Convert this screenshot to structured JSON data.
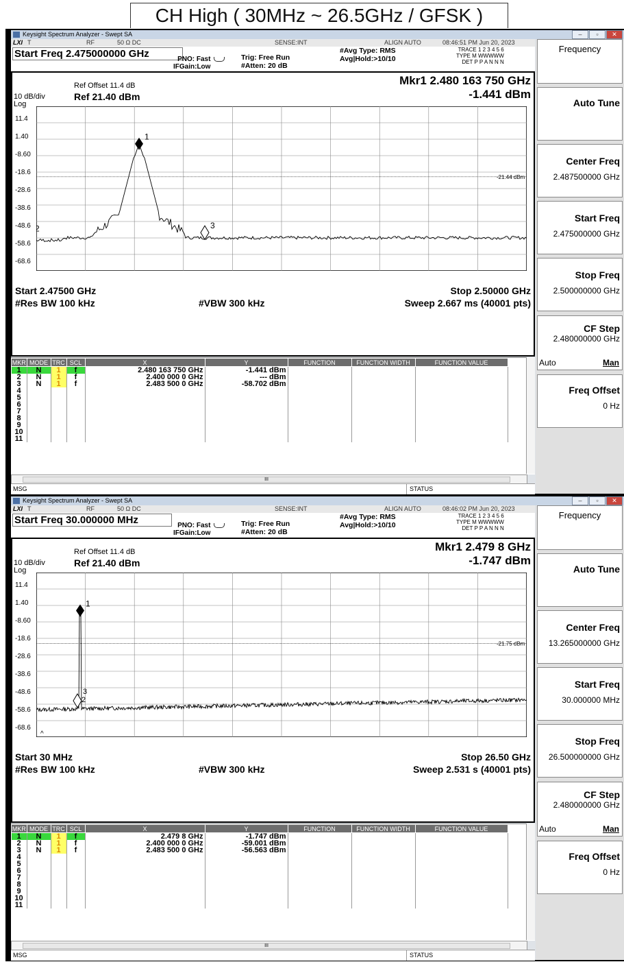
{
  "page_title": "CH High ( 30MHz ~ 26.5GHz / GFSK )",
  "analyzers": [
    {
      "window_title": "Keysight Spectrum Analyzer - Swept SA",
      "statusbar": {
        "lxi": "LXI",
        "t": "T",
        "rf": "RF",
        "ohm": "50 Ω  DC",
        "sense": "SENSE:INT",
        "align": "ALIGN AUTO",
        "time": "08:46:51 PM Jun 20, 2023"
      },
      "start_freq_label": "Start Freq 2.475000000 GHz",
      "pno": "PNO: Fast",
      "ifgain": "IFGain:Low",
      "trig": "Trig: Free Run",
      "atten": "#Atten: 20 dB",
      "avg_type": "#Avg Type: RMS",
      "avg_hold": "Avg|Hold:>10/10",
      "trace_row": "TRACE 1 2 3 4 5 6",
      "type_row": "TYPE M WWWWW",
      "det_row": "DET P P A N N N",
      "ref_offset": "Ref Offset 11.4 dB",
      "scale": "10 dB/div",
      "scale_type": "Log",
      "ref_level": "Ref 21.40 dBm",
      "marker_freq": "Mkr1 2.480 163 750 GHz",
      "marker_amp": "-1.441 dBm",
      "y_ticks": [
        "11.4",
        "1.40",
        "-8.60",
        "-18.6",
        "-28.6",
        "-38.6",
        "-48.6",
        "-58.6",
        "-68.6"
      ],
      "limit_label": "-21.44 dBm",
      "start_label": "Start 2.47500 GHz",
      "stop_label": "Stop 2.50000 GHz",
      "rbw": "#Res BW 100 kHz",
      "vbw": "#VBW 300 kHz",
      "sweep": "Sweep  2.667 ms (40001 pts)",
      "table_headers": [
        "MKR",
        "MODE",
        "TRC",
        "SCL",
        "X",
        "Y",
        "FUNCTION",
        "FUNCTION WIDTH",
        "FUNCTION VALUE"
      ],
      "markers": [
        {
          "n": "1",
          "mode": "N",
          "trc": "1",
          "scl": "f",
          "x": "2.480 163 750 GHz",
          "y": "-1.441 dBm"
        },
        {
          "n": "2",
          "mode": "N",
          "trc": "1",
          "scl": "f",
          "x": "2.400 000 0 GHz",
          "y": "--- dBm"
        },
        {
          "n": "3",
          "mode": "N",
          "trc": "1",
          "scl": "f",
          "x": "2.483 500 0 GHz",
          "y": "-58.702 dBm"
        },
        {
          "n": "4"
        },
        {
          "n": "5"
        },
        {
          "n": "6"
        },
        {
          "n": "7"
        },
        {
          "n": "8"
        },
        {
          "n": "9"
        },
        {
          "n": "10"
        },
        {
          "n": "11"
        }
      ],
      "msg": "MSG",
      "status": "STATUS",
      "softkeys": {
        "menu": "Frequency",
        "auto_tune": "Auto Tune",
        "center_freq": "Center Freq",
        "center_value": "2.487500000 GHz",
        "start_freq": "Start Freq",
        "start_value": "2.475000000 GHz",
        "stop_freq": "Stop Freq",
        "stop_value": "2.500000000 GHz",
        "cf_step": "CF Step",
        "cf_value": "2.480000000 GHz",
        "auto": "Auto",
        "man": "Man",
        "freq_offset": "Freq Offset",
        "offset_value": "0 Hz"
      }
    },
    {
      "window_title": "Keysight Spectrum Analyzer - Swept SA",
      "statusbar": {
        "lxi": "LXI",
        "t": "T",
        "rf": "RF",
        "ohm": "50 Ω  DC",
        "sense": "SENSE:INT",
        "align": "ALIGN AUTO",
        "time": "08:46:02 PM Jun 20, 2023"
      },
      "start_freq_label": "Start Freq 30.000000 MHz",
      "pno": "PNO: Fast",
      "ifgain": "IFGain:Low",
      "trig": "Trig: Free Run",
      "atten": "#Atten: 20 dB",
      "avg_type": "#Avg Type: RMS",
      "avg_hold": "Avg|Hold:>10/10",
      "trace_row": "TRACE 1 2 3 4 5 6",
      "type_row": "TYPE M WWWWW",
      "det_row": "DET P P A N N N",
      "ref_offset": "Ref Offset 11.4 dB",
      "scale": "10 dB/div",
      "scale_type": "Log",
      "ref_level": "Ref 21.40 dBm",
      "marker_freq": "Mkr1 2.479 8 GHz",
      "marker_amp": "-1.747 dBm",
      "y_ticks": [
        "11.4",
        "1.40",
        "-8.60",
        "-18.6",
        "-28.6",
        "-38.6",
        "-48.6",
        "-58.6",
        "-68.6"
      ],
      "limit_label": "-21.75 dBm",
      "start_label": "Start 30 MHz",
      "stop_label": "Stop 26.50 GHz",
      "rbw": "#Res BW 100 kHz",
      "vbw": "#VBW 300 kHz",
      "sweep": "Sweep  2.531 s (40001 pts)",
      "table_headers": [
        "MKR",
        "MODE",
        "TRC",
        "SCL",
        "X",
        "Y",
        "FUNCTION",
        "FUNCTION WIDTH",
        "FUNCTION VALUE"
      ],
      "markers": [
        {
          "n": "1",
          "mode": "N",
          "trc": "1",
          "scl": "f",
          "x": "2.479 8 GHz",
          "y": "-1.747 dBm"
        },
        {
          "n": "2",
          "mode": "N",
          "trc": "1",
          "scl": "f",
          "x": "2.400 000 0 GHz",
          "y": "-59.001 dBm"
        },
        {
          "n": "3",
          "mode": "N",
          "trc": "1",
          "scl": "f",
          "x": "2.483 500 0 GHz",
          "y": "-56.563 dBm"
        },
        {
          "n": "4"
        },
        {
          "n": "5"
        },
        {
          "n": "6"
        },
        {
          "n": "7"
        },
        {
          "n": "8"
        },
        {
          "n": "9"
        },
        {
          "n": "10"
        },
        {
          "n": "11"
        }
      ],
      "msg": "MSG",
      "status": "STATUS",
      "softkeys": {
        "menu": "Frequency",
        "auto_tune": "Auto Tune",
        "center_freq": "Center Freq",
        "center_value": "13.265000000 GHz",
        "start_freq": "Start Freq",
        "start_value": "30.000000 MHz",
        "stop_freq": "Stop Freq",
        "stop_value": "26.500000000 GHz",
        "cf_step": "CF Step",
        "cf_value": "2.480000000 GHz",
        "auto": "Auto",
        "man": "Man",
        "freq_offset": "Freq Offset",
        "offset_value": "0 Hz"
      }
    }
  ],
  "colors": {
    "marker_select": "#39d83c",
    "trace_highlight": "#ffff66",
    "table_header": "#6d6d6d"
  }
}
